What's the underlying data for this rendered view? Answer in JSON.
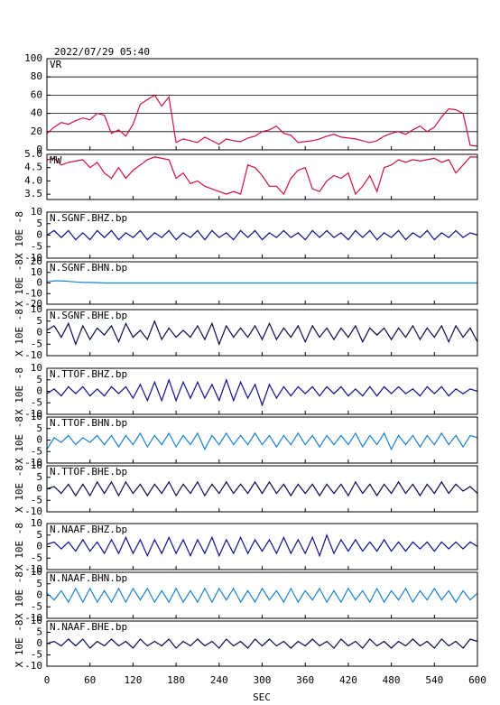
{
  "chart_data": {
    "type": "line",
    "title": "2022/07/29 05:40",
    "xlabel": "SEC",
    "xlim": [
      0,
      600
    ],
    "xticks": [
      0,
      60,
      120,
      180,
      240,
      300,
      360,
      420,
      480,
      540,
      600
    ],
    "x": [
      0,
      10,
      20,
      30,
      40,
      50,
      60,
      70,
      80,
      90,
      100,
      110,
      120,
      130,
      140,
      150,
      160,
      170,
      180,
      190,
      200,
      210,
      220,
      230,
      240,
      250,
      260,
      270,
      280,
      290,
      300,
      310,
      320,
      330,
      340,
      350,
      360,
      370,
      380,
      390,
      400,
      410,
      420,
      430,
      440,
      450,
      460,
      470,
      480,
      490,
      500,
      510,
      520,
      530,
      540,
      550,
      560,
      570,
      580,
      590,
      600
    ],
    "panels": [
      {
        "name": "VR",
        "color": "#cc1144",
        "grid": true,
        "ylim": [
          0,
          100
        ],
        "yticks": [
          0,
          20,
          40,
          60,
          80,
          100
        ],
        "values": [
          18,
          25,
          30,
          28,
          32,
          35,
          33,
          40,
          38,
          18,
          22,
          15,
          28,
          50,
          55,
          60,
          48,
          58,
          8,
          12,
          10,
          8,
          14,
          10,
          6,
          12,
          10,
          9,
          13,
          15,
          20,
          22,
          26,
          18,
          16,
          8,
          9,
          10,
          12,
          15,
          17,
          14,
          13,
          12,
          10,
          8,
          10,
          15,
          18,
          20,
          17,
          22,
          26,
          20,
          25,
          36,
          45,
          44,
          40,
          5,
          4
        ]
      },
      {
        "name": "MW",
        "color": "#cc1144",
        "grid": false,
        "ylim": [
          3.3,
          5.0
        ],
        "yticks": [
          3.5,
          {
            "value": 4,
            "label": "4.0"
          },
          4.5,
          {
            "value": 5,
            "label": "5.0"
          }
        ],
        "values": [
          4.8,
          4.85,
          4.6,
          4.7,
          4.75,
          4.8,
          4.5,
          4.7,
          4.3,
          4.1,
          4.5,
          4.1,
          4.4,
          4.6,
          4.8,
          4.9,
          4.85,
          4.8,
          4.1,
          4.3,
          3.9,
          4.0,
          3.8,
          3.7,
          3.6,
          3.5,
          3.6,
          3.5,
          4.6,
          4.5,
          4.2,
          3.8,
          3.8,
          3.5,
          4.1,
          4.4,
          4.5,
          3.7,
          3.6,
          4.0,
          4.2,
          4.1,
          4.3,
          3.5,
          3.8,
          4.2,
          3.6,
          4.5,
          4.6,
          4.8,
          4.7,
          4.8,
          4.75,
          4.8,
          4.85,
          4.7,
          4.8,
          4.3,
          4.6,
          4.9,
          4.9
        ]
      },
      {
        "name": "N.SGNF.BHZ.bp",
        "ylabel": "X 10E -8",
        "color": "#10108c",
        "grid": false,
        "ylim": [
          -10,
          10
        ],
        "yticks": [
          -10,
          -5,
          0,
          5,
          10
        ],
        "values": [
          0,
          2,
          -1,
          2,
          -2,
          1,
          -2,
          2,
          -1,
          2,
          -2,
          1,
          -1,
          2,
          -2,
          1,
          -1,
          2,
          -2,
          1,
          -1,
          2,
          -2,
          2,
          -1,
          1,
          -2,
          2,
          -1,
          2,
          -2,
          1,
          -1,
          2,
          -1,
          1,
          -2,
          2,
          -1,
          2,
          -1,
          1,
          -2,
          2,
          -1,
          2,
          -2,
          1,
          -1,
          2,
          -2,
          1,
          -1,
          2,
          -2,
          1,
          -1,
          2,
          -1,
          1,
          0
        ]
      },
      {
        "name": "N.SGNF.BHN.bp",
        "ylabel": "X 10E -8",
        "color": "#1a80d0",
        "grid": false,
        "ylim": [
          -20,
          20
        ],
        "yticks": [
          -20,
          -10,
          0,
          10,
          20
        ],
        "values": [
          1,
          2,
          2,
          1.5,
          1,
          0.5,
          0.5,
          0.3,
          0,
          0,
          0,
          0,
          0,
          0,
          0,
          0,
          0,
          0,
          0,
          0,
          0,
          0,
          0,
          0,
          0,
          0,
          0,
          0,
          0,
          0,
          0,
          0,
          0,
          0,
          0,
          0,
          0,
          0,
          0,
          0,
          0,
          0,
          0,
          0,
          0,
          0,
          0,
          0,
          0,
          0,
          0,
          0,
          0,
          0,
          0,
          0,
          0,
          0,
          0,
          0,
          0
        ]
      },
      {
        "name": "N.SGNF.BHE.bp",
        "ylabel": "X 10E -8",
        "color": "#0a0a50",
        "grid": false,
        "ylim": [
          -10,
          10
        ],
        "yticks": [
          -10,
          -5,
          0,
          5,
          10
        ],
        "values": [
          1,
          3,
          -2,
          4,
          -5,
          3,
          -3,
          2,
          -1,
          3,
          -4,
          4,
          -2,
          1,
          -3,
          5,
          -3,
          2,
          -2,
          1,
          -2,
          3,
          -3,
          4,
          -5,
          3,
          -2,
          2,
          -2,
          3,
          -3,
          4,
          -3,
          2,
          -2,
          3,
          -4,
          3,
          -2,
          2,
          -3,
          2,
          -2,
          3,
          -4,
          2,
          -1,
          2,
          -3,
          2,
          -2,
          3,
          -3,
          2,
          -2,
          3,
          -4,
          3,
          -2,
          2,
          -4
        ]
      },
      {
        "name": "N.TTOF.BHZ.bp",
        "ylabel": "X 10E -8",
        "color": "#10108c",
        "grid": false,
        "ylim": [
          -10,
          10
        ],
        "yticks": [
          -10,
          -5,
          0,
          5,
          10
        ],
        "values": [
          -1,
          1,
          -2,
          2,
          -1,
          2,
          -2,
          1,
          -2,
          2,
          -1,
          2,
          -3,
          3,
          -4,
          4,
          -4,
          5,
          -4,
          4,
          -3,
          4,
          -3,
          3,
          -4,
          5,
          -4,
          4,
          -3,
          3,
          -6,
          3,
          -3,
          2,
          -2,
          2,
          -1,
          2,
          -2,
          2,
          -1,
          2,
          -2,
          1,
          -2,
          2,
          -2,
          2,
          -1,
          2,
          -1,
          1,
          -2,
          2,
          -1,
          2,
          -2,
          1,
          -1,
          1,
          0
        ]
      },
      {
        "name": "N.TTOF.BHN.bp",
        "ylabel": "X 10E -8",
        "color": "#1a80d0",
        "grid": false,
        "ylim": [
          -10,
          10
        ],
        "yticks": [
          -10,
          -5,
          0,
          5,
          10
        ],
        "values": [
          -4,
          1,
          -1,
          2,
          -2,
          1,
          -1,
          2,
          -2,
          2,
          -3,
          2,
          -2,
          3,
          -3,
          2,
          -2,
          3,
          -3,
          2,
          -2,
          3,
          -4,
          2,
          -2,
          3,
          -2,
          2,
          -2,
          3,
          -2,
          2,
          -3,
          2,
          -2,
          3,
          -2,
          2,
          -3,
          2,
          -2,
          2,
          -2,
          3,
          -3,
          2,
          -2,
          3,
          -4,
          2,
          -2,
          2,
          -3,
          2,
          -2,
          3,
          -2,
          2,
          -3,
          2,
          1
        ]
      },
      {
        "name": "N.TTOF.BHE.bp",
        "ylabel": "X 10E -8",
        "color": "#0a0a50",
        "grid": false,
        "ylim": [
          -10,
          10
        ],
        "yticks": [
          -10,
          -5,
          0,
          5,
          10
        ],
        "values": [
          0,
          1,
          -2,
          2,
          -3,
          2,
          -3,
          3,
          -2,
          3,
          -3,
          3,
          -2,
          2,
          -3,
          2,
          -2,
          3,
          -3,
          2,
          -2,
          3,
          -3,
          2,
          -2,
          3,
          -2,
          2,
          -2,
          3,
          -2,
          3,
          -2,
          2,
          -3,
          2,
          -2,
          2,
          -3,
          2,
          -2,
          2,
          -3,
          3,
          -2,
          2,
          -3,
          2,
          -2,
          3,
          -2,
          2,
          -3,
          2,
          -2,
          3,
          -2,
          2,
          -1,
          1,
          -2
        ]
      },
      {
        "name": "N.NAAF.BHZ.bp",
        "ylabel": "X 10E -8",
        "color": "#10108c",
        "grid": false,
        "ylim": [
          -10,
          10
        ],
        "yticks": [
          -10,
          -5,
          0,
          5,
          10
        ],
        "values": [
          1,
          2,
          -1,
          2,
          -2,
          3,
          -2,
          2,
          -3,
          3,
          -3,
          4,
          -3,
          3,
          -4,
          3,
          -3,
          4,
          -3,
          3,
          -4,
          3,
          -3,
          4,
          -4,
          3,
          -3,
          4,
          -3,
          3,
          -2,
          3,
          -3,
          4,
          -3,
          3,
          -3,
          4,
          -4,
          5,
          -3,
          3,
          -2,
          3,
          -2,
          2,
          -2,
          3,
          -2,
          2,
          -2,
          2,
          -1,
          2,
          -2,
          2,
          -1,
          2,
          -1,
          2,
          0
        ]
      },
      {
        "name": "N.NAAF.BHN.bp",
        "ylabel": "X 10E -8",
        "color": "#1a80d0",
        "grid": false,
        "ylim": [
          -10,
          10
        ],
        "yticks": [
          -10,
          -5,
          0,
          5,
          10
        ],
        "values": [
          1,
          -2,
          2,
          -3,
          3,
          -3,
          3,
          -3,
          2,
          -3,
          3,
          -3,
          3,
          -2,
          3,
          -3,
          2,
          -3,
          3,
          -3,
          2,
          -3,
          3,
          -3,
          3,
          -2,
          3,
          -3,
          2,
          -3,
          3,
          -2,
          2,
          -3,
          3,
          -3,
          2,
          -2,
          3,
          -3,
          2,
          -3,
          3,
          -2,
          2,
          -3,
          3,
          -3,
          2,
          -2,
          3,
          -3,
          2,
          -2,
          3,
          -2,
          2,
          -3,
          2,
          -2,
          1
        ]
      },
      {
        "name": "N.NAAF.BHE.bp",
        "ylabel": "X 10E -8",
        "color": "#0a0a50",
        "grid": false,
        "ylim": [
          -10,
          10
        ],
        "yticks": [
          -10,
          -5,
          0,
          5,
          10
        ],
        "values": [
          0,
          1,
          -1,
          2,
          -1,
          2,
          -2,
          1,
          -1,
          2,
          -1,
          1,
          -2,
          2,
          -1,
          1,
          -1,
          2,
          -2,
          1,
          -1,
          2,
          -1,
          1,
          -2,
          2,
          -1,
          1,
          -2,
          2,
          -1,
          2,
          -1,
          1,
          -2,
          1,
          -1,
          2,
          -1,
          1,
          -2,
          2,
          -1,
          1,
          -2,
          2,
          -1,
          1,
          -2,
          1,
          -1,
          2,
          -1,
          1,
          -2,
          2,
          -1,
          1,
          -2,
          2,
          1
        ]
      }
    ]
  }
}
